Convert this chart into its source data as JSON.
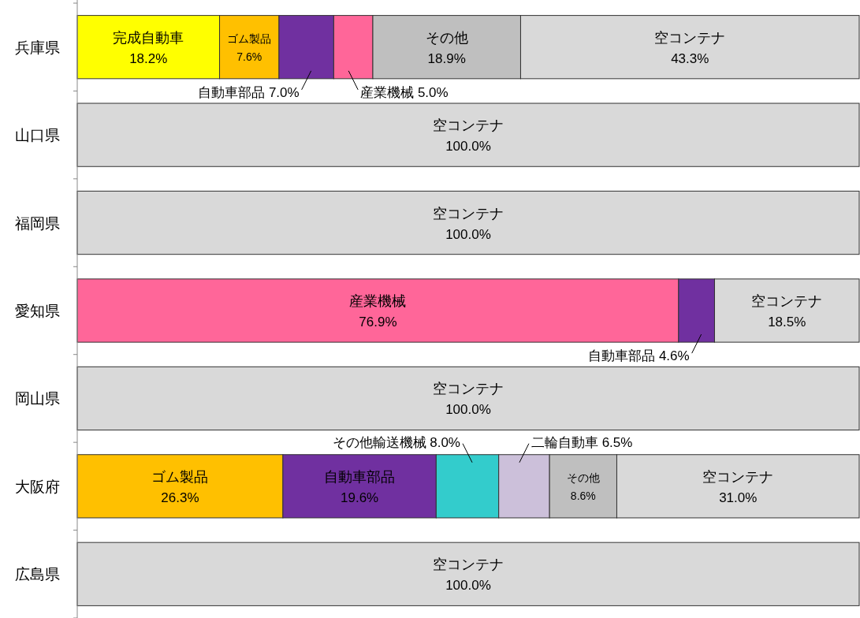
{
  "chart_data": {
    "type": "bar",
    "orientation": "horizontal",
    "stacked": true,
    "xlim": [
      0,
      100
    ],
    "tick_labels": "y",
    "categories": [
      "兵庫県",
      "山口県",
      "福岡県",
      "愛知県",
      "岡山県",
      "大阪府",
      "広島県"
    ],
    "series": [
      {
        "name": "完成自動車",
        "color": "#ffff00",
        "values": [
          18.2,
          null,
          null,
          null,
          null,
          null,
          null
        ],
        "value_labels": [
          "18.2%",
          null,
          null,
          null,
          null,
          null,
          null
        ]
      },
      {
        "name": "産業機械",
        "color": "#ff6699",
        "values": [
          null,
          null,
          null,
          76.9,
          null,
          null,
          null
        ],
        "value_labels": [
          null,
          null,
          null,
          "76.9%",
          null,
          null,
          null
        ]
      },
      {
        "name": "ゴム製品",
        "color": "#ffc000",
        "values": [
          7.6,
          null,
          null,
          null,
          null,
          26.3,
          null
        ],
        "value_labels": [
          "7.6%",
          null,
          null,
          null,
          null,
          "26.3%",
          null
        ]
      },
      {
        "name": "自動車部品",
        "color": "#7030a0",
        "values": [
          7.0,
          null,
          null,
          4.6,
          null,
          19.6,
          null
        ],
        "value_labels": [
          "7.0%",
          null,
          null,
          "4.6%",
          null,
          "19.6%",
          null
        ]
      },
      {
        "name": "産業機械",
        "color": "#ff6699",
        "values": [
          5.0,
          null,
          null,
          null,
          null,
          null,
          null
        ],
        "value_labels": [
          "5.0%",
          null,
          null,
          null,
          null,
          null,
          null
        ]
      },
      {
        "name": "その他輸送機械",
        "color": "#33cccc",
        "values": [
          null,
          null,
          null,
          null,
          null,
          8.0,
          null
        ],
        "value_labels": [
          null,
          null,
          null,
          null,
          null,
          "8.0%",
          null
        ]
      },
      {
        "name": "二輪自動車",
        "color": "#ccc0da",
        "values": [
          null,
          null,
          null,
          null,
          null,
          6.5,
          null
        ],
        "value_labels": [
          null,
          null,
          null,
          null,
          null,
          "6.5%",
          null
        ]
      },
      {
        "name": "その他",
        "color": "#bfbfbf",
        "values": [
          18.9,
          null,
          null,
          null,
          null,
          8.6,
          null
        ],
        "value_labels": [
          "18.9%",
          null,
          null,
          null,
          null,
          "8.6%",
          null
        ]
      },
      {
        "name": "空コンテナ",
        "color": "#d9d9d9",
        "values": [
          43.3,
          100.0,
          100.0,
          18.5,
          100.0,
          31.0,
          100.0
        ],
        "value_labels": [
          "43.3%",
          "100.0%",
          "100.0%",
          "18.5%",
          "100.0%",
          "31.0%",
          "100.0%"
        ]
      }
    ]
  }
}
